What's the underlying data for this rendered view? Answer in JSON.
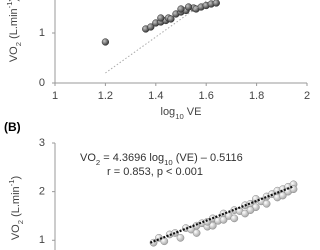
{
  "chart_data": [
    {
      "type": "scatter",
      "ylabel": [
        {
          "text": "VO"
        },
        {
          "text": "2",
          "shift": "sub"
        },
        {
          "text": " (L.min"
        },
        {
          "text": "-1",
          "shift": "super"
        },
        {
          "text": ")"
        }
      ],
      "xlabel": [
        {
          "text": "log"
        },
        {
          "text": "10",
          "shift": "sub"
        },
        {
          "text": " VE"
        }
      ],
      "x": [
        1.2,
        1.36,
        1.38,
        1.4,
        1.42,
        1.44,
        1.45,
        1.46,
        1.48,
        1.5,
        1.52,
        1.55,
        1.56,
        1.58,
        1.6,
        1.62,
        1.64,
        1.5,
        1.53,
        1.42
      ],
      "y": [
        0.82,
        1.08,
        1.12,
        1.2,
        1.22,
        1.25,
        1.3,
        1.28,
        1.38,
        1.42,
        1.45,
        1.5,
        1.48,
        1.52,
        1.55,
        1.58,
        1.6,
        1.48,
        1.52,
        1.3
      ],
      "color": "#5a5a5a",
      "xlim": [
        1,
        2
      ],
      "xticks": [
        1,
        1.2,
        1.4,
        1.6,
        1.8,
        2
      ],
      "ylim": [
        0,
        1.66
      ],
      "yticks": [
        0,
        1
      ],
      "trendline": {
        "x": [
          1.2,
          1.6
        ],
        "y": [
          0.2,
          1.64
        ]
      }
    },
    {
      "type": "scatter",
      "panel_label": "(B)",
      "annotation": [
        [
          {
            "text": "VO"
          },
          {
            "text": "2",
            "shift": "sub"
          },
          {
            "text": " = 4.3696 log"
          },
          {
            "text": "10",
            "shift": "sub"
          },
          {
            "text": " (VE) – 0.5116"
          }
        ],
        [
          {
            "text": "r = 0.853, p < 0.001"
          }
        ]
      ],
      "ylabel": [
        {
          "text": "VO"
        },
        {
          "text": "2",
          "shift": "sub"
        },
        {
          "text": " (L.min"
        },
        {
          "text": "-1",
          "shift": "super"
        },
        {
          "text": ")"
        }
      ],
      "x": [
        0.34,
        0.35,
        0.36,
        0.37,
        0.38,
        0.39,
        0.4,
        0.41,
        0.42,
        0.42,
        0.43,
        0.44,
        0.45,
        0.45,
        0.46,
        0.47,
        0.47,
        0.48,
        0.49,
        0.49,
        0.5,
        0.51,
        0.51,
        0.52,
        0.53,
        0.53,
        0.54,
        0.55,
        0.55,
        0.56,
        0.57,
        0.57,
        0.58,
        0.58,
        0.59,
        0.59,
        0.6,
        0.6,
        0.44,
        0.52
      ],
      "y": [
        0.95,
        1.05,
        0.98,
        1.12,
        1.15,
        1.05,
        1.25,
        1.22,
        1.3,
        1.15,
        1.35,
        1.28,
        1.45,
        1.3,
        1.4,
        1.55,
        1.42,
        1.5,
        1.62,
        1.45,
        1.6,
        1.72,
        1.55,
        1.75,
        1.68,
        1.85,
        1.8,
        1.9,
        1.75,
        1.95,
        1.88,
        2.02,
        2.05,
        1.92,
        2.1,
        2.0,
        2.15,
        2.05,
        1.38,
        1.62
      ],
      "color": "#d4d4d4",
      "xlim": [
        0.157,
        0.625
      ],
      "ylim": [
        0.8,
        3
      ],
      "yticks": [
        1,
        2,
        3
      ],
      "trendline": {
        "x": [
          0.334,
          0.598
        ],
        "y": [
          0.95,
          2.1
        ]
      }
    }
  ]
}
